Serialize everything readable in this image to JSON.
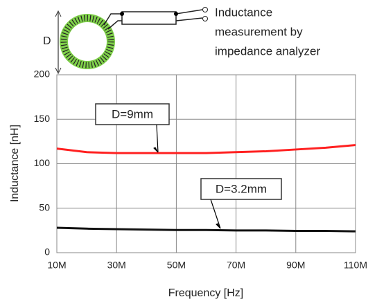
{
  "chart_data": {
    "type": "line",
    "annotations": {
      "diameter": "D",
      "caption": [
        "Inductance",
        "measurement by",
        "impedance analyzer"
      ]
    },
    "x_label": "Frequency [Hz]",
    "y_label": "Inductance [nH]",
    "x": [
      10000000,
      20000000,
      30000000,
      40000000,
      50000000,
      60000000,
      70000000,
      80000000,
      90000000,
      100000000,
      110000000
    ],
    "series": [
      {
        "name": "D=9mm",
        "color": "#ff2020",
        "values": [
          117,
          113,
          112,
          112,
          112,
          112,
          113,
          114,
          116,
          118,
          121
        ]
      },
      {
        "name": "D=3.2mm",
        "color": "#111111",
        "values": [
          28,
          27,
          26.5,
          26,
          25.5,
          25.5,
          25,
          25,
          24.5,
          24.5,
          24
        ]
      }
    ],
    "xlim": [
      10000000,
      110000000
    ],
    "xticks": [
      {
        "value": 10000000,
        "label": "10M"
      },
      {
        "value": 30000000,
        "label": "30M"
      },
      {
        "value": 50000000,
        "label": "50M"
      },
      {
        "value": 70000000,
        "label": "70M"
      },
      {
        "value": 90000000,
        "label": "90M"
      },
      {
        "value": 110000000,
        "label": "110M"
      }
    ],
    "ylim": [
      0,
      200
    ],
    "yticks": [
      0,
      50,
      100,
      150,
      200
    ],
    "grid": true
  }
}
